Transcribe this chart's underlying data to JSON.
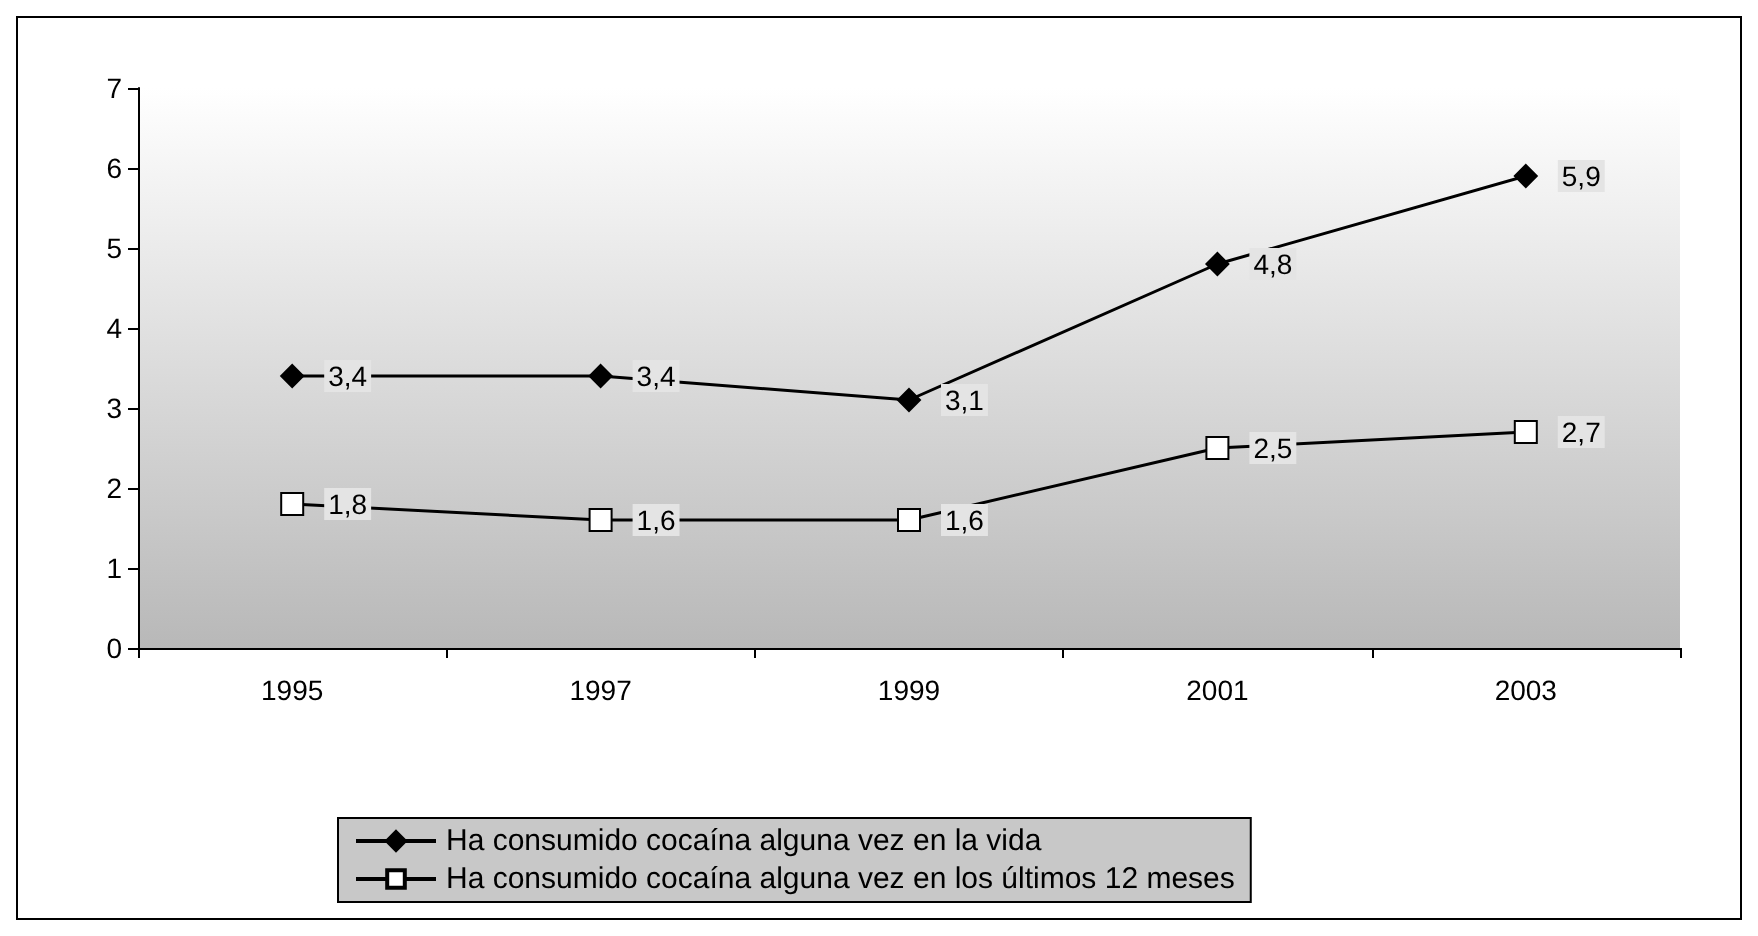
{
  "chart_data": {
    "type": "line",
    "categories": [
      "1995",
      "1997",
      "1999",
      "2001",
      "2003"
    ],
    "series": [
      {
        "name": "Ha consumido cocaína alguna vez en la vida",
        "color": "#000000",
        "marker": "diamond",
        "values": [
          3.4,
          3.4,
          3.1,
          4.8,
          5.9
        ],
        "value_labels": [
          "3,4",
          "3,4",
          "3,1",
          "4,8",
          "5,9"
        ]
      },
      {
        "name": "Ha consumido cocaína alguna vez en los últimos 12 meses",
        "color": "#ffffff",
        "marker": "square",
        "values": [
          1.8,
          1.6,
          1.6,
          2.5,
          2.7
        ],
        "value_labels": [
          "1,8",
          "1,6",
          "1,6",
          "2,5",
          "2,7"
        ]
      }
    ],
    "ylim": [
      0,
      7
    ],
    "yticks": [
      0,
      1,
      2,
      3,
      4,
      5,
      6,
      7
    ],
    "grid": false,
    "legend": "bottom"
  }
}
